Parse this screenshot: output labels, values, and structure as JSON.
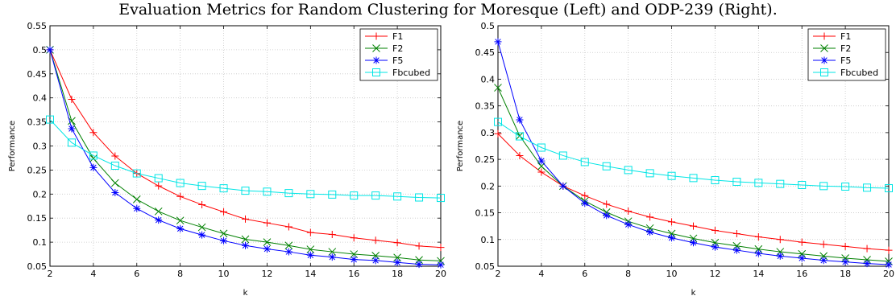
{
  "figure": {
    "title": "Evaluation Metrics for Random Clustering for Moresque (Left) and ODP-239 (Right)."
  },
  "colors": {
    "F1": "#ff0000",
    "F2": "#008000",
    "F5": "#0000ff",
    "Fbcubed": "#00e5e5"
  },
  "chart_data": [
    {
      "type": "line",
      "panel": "left",
      "xlabel": "k",
      "ylabel": "Performance",
      "xlim": [
        2,
        20
      ],
      "ylim": [
        0.05,
        0.55
      ],
      "xticks": [
        2,
        4,
        6,
        8,
        10,
        12,
        14,
        16,
        18,
        20
      ],
      "yticks": [
        0.05,
        0.1,
        0.15,
        0.2,
        0.25,
        0.3,
        0.35,
        0.4,
        0.45,
        0.5,
        0.55
      ],
      "grid": true,
      "legend_position": "top-right",
      "x": [
        2,
        3,
        4,
        5,
        6,
        7,
        8,
        9,
        10,
        11,
        12,
        13,
        14,
        15,
        16,
        17,
        18,
        19,
        20
      ],
      "series": [
        {
          "name": "F1",
          "marker": "plus",
          "values": [
            0.5,
            0.397,
            0.328,
            0.279,
            0.243,
            0.217,
            0.195,
            0.178,
            0.163,
            0.148,
            0.14,
            0.132,
            0.12,
            0.116,
            0.109,
            0.104,
            0.099,
            0.092,
            0.089
          ]
        },
        {
          "name": "F2",
          "marker": "x",
          "values": [
            0.5,
            0.352,
            0.274,
            0.223,
            0.189,
            0.164,
            0.145,
            0.131,
            0.118,
            0.106,
            0.1,
            0.093,
            0.085,
            0.08,
            0.075,
            0.072,
            0.068,
            0.063,
            0.061
          ]
        },
        {
          "name": "F5",
          "marker": "star",
          "values": [
            0.5,
            0.336,
            0.255,
            0.203,
            0.17,
            0.146,
            0.128,
            0.115,
            0.103,
            0.093,
            0.086,
            0.08,
            0.073,
            0.069,
            0.064,
            0.062,
            0.058,
            0.054,
            0.053
          ]
        },
        {
          "name": "Fbcubed",
          "marker": "square",
          "values": [
            0.355,
            0.307,
            0.28,
            0.259,
            0.243,
            0.233,
            0.223,
            0.217,
            0.212,
            0.207,
            0.205,
            0.202,
            0.2,
            0.199,
            0.197,
            0.197,
            0.195,
            0.193,
            0.192
          ]
        }
      ]
    },
    {
      "type": "line",
      "panel": "right",
      "xlabel": "k",
      "ylabel": "Performance",
      "xlim": [
        2,
        20
      ],
      "ylim": [
        0.05,
        0.5
      ],
      "xticks": [
        2,
        4,
        6,
        8,
        10,
        12,
        14,
        16,
        18,
        20
      ],
      "yticks": [
        0.05,
        0.1,
        0.15,
        0.2,
        0.25,
        0.3,
        0.35,
        0.4,
        0.45,
        0.5
      ],
      "grid": true,
      "legend_position": "top-right",
      "x": [
        2,
        3,
        4,
        5,
        6,
        7,
        8,
        9,
        10,
        11,
        12,
        13,
        14,
        15,
        16,
        17,
        18,
        19,
        20
      ],
      "series": [
        {
          "name": "F1",
          "marker": "plus",
          "values": [
            0.298,
            0.257,
            0.226,
            0.2,
            0.182,
            0.166,
            0.153,
            0.142,
            0.133,
            0.125,
            0.117,
            0.111,
            0.105,
            0.1,
            0.095,
            0.091,
            0.087,
            0.083,
            0.08
          ]
        },
        {
          "name": "F2",
          "marker": "x",
          "values": [
            0.384,
            0.294,
            0.237,
            0.2,
            0.172,
            0.151,
            0.134,
            0.121,
            0.111,
            0.102,
            0.094,
            0.088,
            0.082,
            0.077,
            0.073,
            0.069,
            0.065,
            0.062,
            0.059
          ]
        },
        {
          "name": "F5",
          "marker": "star",
          "values": [
            0.47,
            0.324,
            0.247,
            0.2,
            0.168,
            0.145,
            0.128,
            0.114,
            0.103,
            0.094,
            0.086,
            0.08,
            0.074,
            0.069,
            0.065,
            0.061,
            0.058,
            0.055,
            0.053
          ]
        },
        {
          "name": "Fbcubed",
          "marker": "square",
          "values": [
            0.32,
            0.293,
            0.272,
            0.257,
            0.245,
            0.237,
            0.23,
            0.224,
            0.219,
            0.215,
            0.211,
            0.208,
            0.206,
            0.204,
            0.202,
            0.2,
            0.199,
            0.197,
            0.196
          ]
        }
      ]
    }
  ]
}
